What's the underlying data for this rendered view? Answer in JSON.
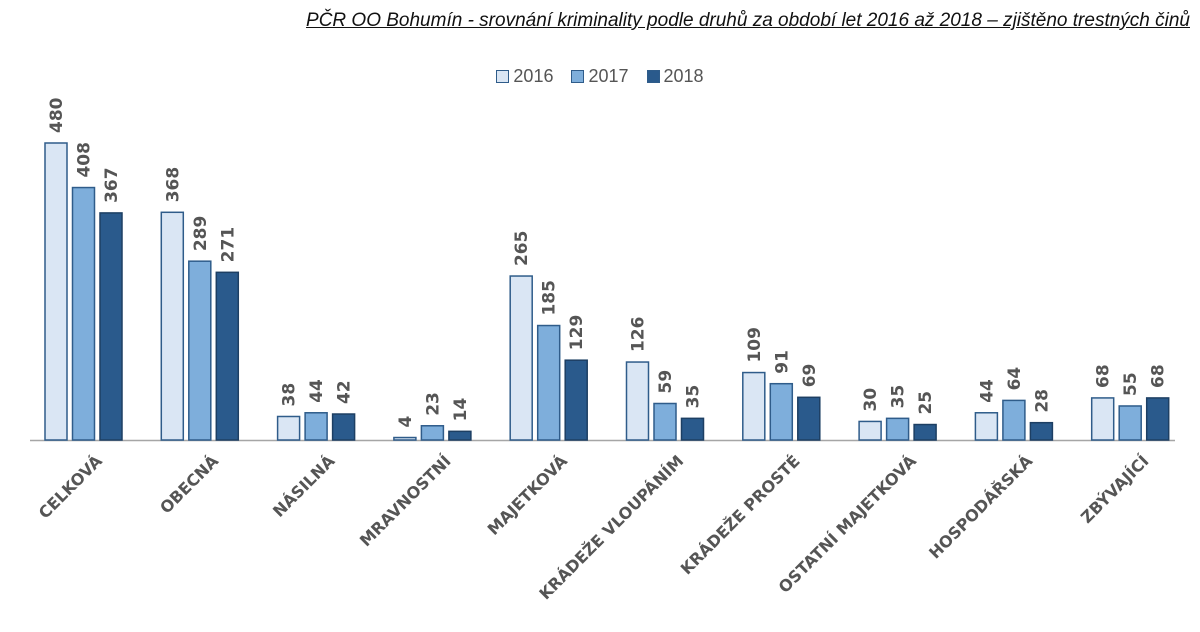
{
  "chart_data": {
    "type": "bar",
    "title": "PČR OO Bohumín - srovnání kriminality podle druhů za období let 2016 až 2018 – zjištěno trestných činů",
    "categories": [
      "CELKOVÁ",
      "OBECNÁ",
      "NÁSILNÁ",
      "MRAVNOSTNÍ",
      "MAJETKOVÁ",
      "KRÁDEŽE VLOUPÁNÍM",
      "KRÁDEŽE PROSTÉ",
      "OSTATNÍ MAJETKOVÁ",
      "HOSPODÁŘSKÁ",
      "ZBÝVAJÍCÍ"
    ],
    "series": [
      {
        "name": "2016",
        "color": "#dae6f4",
        "values": [
          480,
          368,
          38,
          4,
          265,
          126,
          109,
          30,
          44,
          68
        ]
      },
      {
        "name": "2017",
        "color": "#7eaedb",
        "values": [
          408,
          289,
          44,
          23,
          185,
          59,
          91,
          35,
          64,
          55
        ]
      },
      {
        "name": "2018",
        "color": "#2a5a8c",
        "values": [
          367,
          271,
          42,
          14,
          129,
          35,
          69,
          25,
          28,
          68
        ]
      }
    ],
    "ylim": [
      0,
      480
    ],
    "legend": "top-center",
    "grid": false,
    "xlabel": "",
    "ylabel": ""
  }
}
